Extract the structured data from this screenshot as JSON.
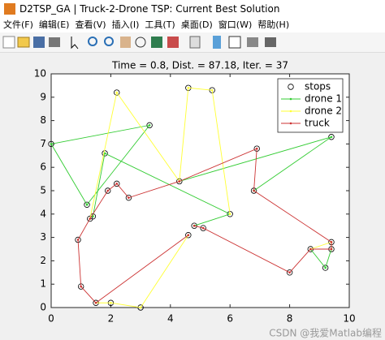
{
  "window": {
    "title": "D2TSP_GA | Truck-2-Drone TSP: Current Best Solution",
    "menu": [
      "文件(F)",
      "编辑(E)",
      "查看(V)",
      "插入(I)",
      "工具(T)",
      "桌面(D)",
      "窗口(W)",
      "帮助(H)"
    ],
    "watermark": "CSDN @我爱Matlab编程"
  },
  "chart_data": {
    "type": "line",
    "title": "Time = 0.8, Dist. = 87.18, Iter. = 37",
    "xlim": [
      0,
      10
    ],
    "ylim": [
      0,
      10
    ],
    "xticks": [
      0,
      2,
      4,
      6,
      8,
      10
    ],
    "yticks": [
      0,
      1,
      2,
      3,
      4,
      5,
      6,
      7,
      8,
      9,
      10
    ],
    "grid": false,
    "legend": "top-right",
    "series": [
      {
        "name": "stops",
        "type": "scatter",
        "color": "#000000",
        "x": [
          0,
          1.2,
          1.4,
          1.3,
          0.9,
          1.0,
          1.5,
          2.0,
          3.0,
          2.2,
          3.3,
          1.8,
          1.9,
          2.2,
          2.6,
          4.3,
          4.6,
          5.4,
          6.0,
          4.8,
          5.1,
          4.6,
          6.8,
          6.9,
          9.4,
          9.4,
          9.4,
          8.7,
          9.2,
          8.0
        ],
        "values": [
          7.0,
          4.4,
          3.9,
          3.8,
          2.9,
          0.9,
          0.2,
          0.2,
          0.0,
          9.2,
          7.8,
          6.6,
          5.0,
          5.3,
          4.7,
          5.4,
          9.4,
          9.3,
          4.0,
          3.5,
          3.4,
          3.1,
          5.0,
          6.8,
          7.3,
          2.8,
          2.5,
          2.5,
          1.7,
          1.5
        ]
      },
      {
        "name": "drone 1",
        "type": "line",
        "color": "#33cc33",
        "x": [
          1.2,
          0,
          3.3,
          1.2,
          null,
          1.4,
          1.8,
          6.0,
          4.8,
          null,
          4.3,
          9.4,
          6.8,
          null,
          8.7,
          9.2,
          9.4
        ],
        "values": [
          4.4,
          7.0,
          7.8,
          4.4,
          null,
          3.9,
          6.6,
          4.0,
          3.5,
          null,
          5.4,
          7.3,
          5.0,
          null,
          2.5,
          1.7,
          2.5
        ]
      },
      {
        "name": "drone 2",
        "type": "line",
        "color": "#ffff33",
        "x": [
          1.3,
          2.2,
          4.3,
          4.6,
          5.4,
          6.0,
          null,
          1.5,
          2.0,
          3.0,
          4.6,
          null,
          8.7,
          9.4,
          9.4
        ],
        "values": [
          3.8,
          9.2,
          5.4,
          9.4,
          9.3,
          4.0,
          null,
          0.2,
          0.2,
          0.0,
          3.1,
          null,
          2.5,
          2.8,
          2.5
        ]
      },
      {
        "name": "truck",
        "type": "line",
        "color": "#cc3333",
        "x": [
          4.6,
          1.5,
          1.0,
          0.9,
          1.3,
          1.9,
          2.2,
          2.6,
          4.3,
          6.9,
          6.8,
          9.4,
          9.4,
          8.7,
          8.0,
          5.1,
          4.8
        ],
        "values": [
          3.1,
          0.2,
          0.9,
          2.9,
          3.8,
          5.0,
          5.3,
          4.7,
          5.4,
          6.8,
          5.0,
          2.8,
          2.5,
          2.5,
          1.5,
          3.4,
          3.5
        ]
      }
    ]
  }
}
